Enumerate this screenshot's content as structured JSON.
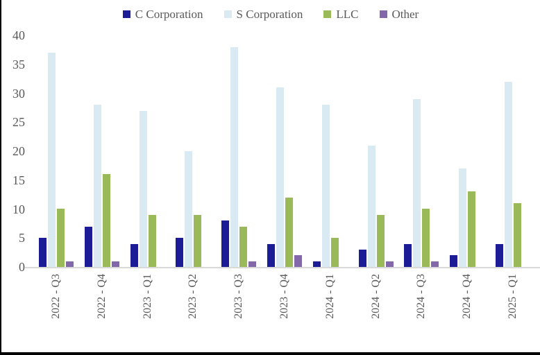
{
  "chart_data": {
    "type": "bar",
    "title": "",
    "xlabel": "",
    "ylabel": "",
    "categories": [
      "2022 - Q3",
      "2022 - Q4",
      "2023 - Q1",
      "2023 - Q2",
      "2023 - Q3",
      "2023 - Q4",
      "2024 - Q1",
      "2024 - Q2",
      "2024 - Q3",
      "2024 - Q4",
      "2025 - Q1"
    ],
    "series": [
      {
        "name": "C Corporation",
        "color": "#1c1c96",
        "values": [
          5,
          7,
          4,
          5,
          8,
          4,
          1,
          3,
          4,
          2,
          4
        ]
      },
      {
        "name": "S Corporation",
        "color": "#daeaf2",
        "values": [
          37,
          28,
          27,
          20,
          38,
          31,
          28,
          21,
          29,
          17,
          32
        ]
      },
      {
        "name": "LLC",
        "color": "#9aba59",
        "values": [
          10,
          16,
          9,
          9,
          7,
          12,
          5,
          9,
          10,
          13,
          11
        ]
      },
      {
        "name": "Other",
        "color": "#8268a8",
        "values": [
          1,
          1,
          0,
          0,
          1,
          2,
          0,
          1,
          1,
          0,
          0
        ]
      }
    ],
    "ylim": [
      0,
      40
    ],
    "yticks": [
      0,
      5,
      10,
      15,
      20,
      25,
      30,
      35,
      40
    ],
    "grid": false,
    "legend_position": "top",
    "colors": {
      "axis_line": "#d9d9d9",
      "tick_label": "#595959",
      "frame_border": "#000000",
      "background": "#ffffff"
    }
  }
}
